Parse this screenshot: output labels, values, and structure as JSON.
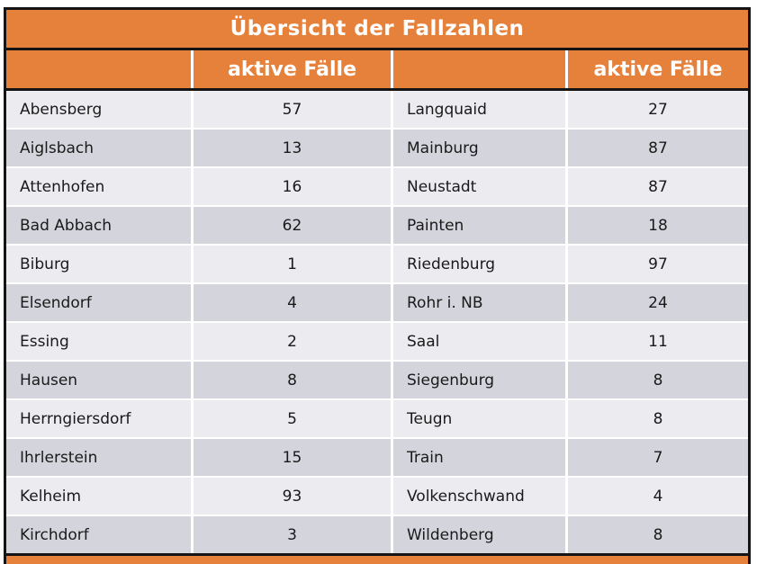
{
  "title": "Übersicht der Fallzahlen",
  "header_label": "aktive Fälle",
  "colors": {
    "orange": "#E6813C",
    "border": "#141414",
    "row_light": "#EBEBF0",
    "row_dark": "#D4D4DC",
    "header_text": "#FFFFFF",
    "body_text": "#1A1A1A"
  },
  "rows": [
    {
      "left": {
        "name": "Abensberg",
        "value": "57"
      },
      "right": {
        "name": "Langquaid",
        "value": "27"
      }
    },
    {
      "left": {
        "name": "Aiglsbach",
        "value": "13"
      },
      "right": {
        "name": "Mainburg",
        "value": "87"
      }
    },
    {
      "left": {
        "name": "Attenhofen",
        "value": "16"
      },
      "right": {
        "name": "Neustadt",
        "value": "87"
      }
    },
    {
      "left": {
        "name": "Bad Abbach",
        "value": "62"
      },
      "right": {
        "name": "Painten",
        "value": "18"
      }
    },
    {
      "left": {
        "name": "Biburg",
        "value": "1"
      },
      "right": {
        "name": "Riedenburg",
        "value": "97"
      }
    },
    {
      "left": {
        "name": "Elsendorf",
        "value": "4"
      },
      "right": {
        "name": "Rohr i. NB",
        "value": "24"
      }
    },
    {
      "left": {
        "name": "Essing",
        "value": "2"
      },
      "right": {
        "name": "Saal",
        "value": "11"
      }
    },
    {
      "left": {
        "name": "Hausen",
        "value": "8"
      },
      "right": {
        "name": "Siegenburg",
        "value": "8"
      }
    },
    {
      "left": {
        "name": "Herrngiersdorf",
        "value": "5"
      },
      "right": {
        "name": "Teugn",
        "value": "8"
      }
    },
    {
      "left": {
        "name": "Ihrlerstein",
        "value": "15"
      },
      "right": {
        "name": "Train",
        "value": "7"
      }
    },
    {
      "left": {
        "name": "Kelheim",
        "value": "93"
      },
      "right": {
        "name": "Volkenschwand",
        "value": "4"
      }
    },
    {
      "left": {
        "name": "Kirchdorf",
        "value": "3"
      },
      "right": {
        "name": "Wildenberg",
        "value": "8"
      }
    }
  ],
  "chart_data": {
    "type": "table",
    "title": "Übersicht der Fallzahlen",
    "columns": [
      "",
      "aktive Fälle",
      "",
      "aktive Fälle"
    ],
    "rows": [
      [
        "Abensberg",
        57,
        "Langquaid",
        27
      ],
      [
        "Aiglsbach",
        13,
        "Mainburg",
        87
      ],
      [
        "Attenhofen",
        16,
        "Neustadt",
        87
      ],
      [
        "Bad Abbach",
        62,
        "Painten",
        18
      ],
      [
        "Biburg",
        1,
        "Riedenburg",
        97
      ],
      [
        "Elsendorf",
        4,
        "Rohr i. NB",
        24
      ],
      [
        "Essing",
        2,
        "Saal",
        11
      ],
      [
        "Hausen",
        8,
        "Siegenburg",
        8
      ],
      [
        "Herrngiersdorf",
        5,
        "Teugn",
        8
      ],
      [
        "Ihrlerstein",
        15,
        "Train",
        7
      ],
      [
        "Kelheim",
        93,
        "Volkenschwand",
        4
      ],
      [
        "Kirchdorf",
        3,
        "Wildenberg",
        8
      ]
    ]
  }
}
